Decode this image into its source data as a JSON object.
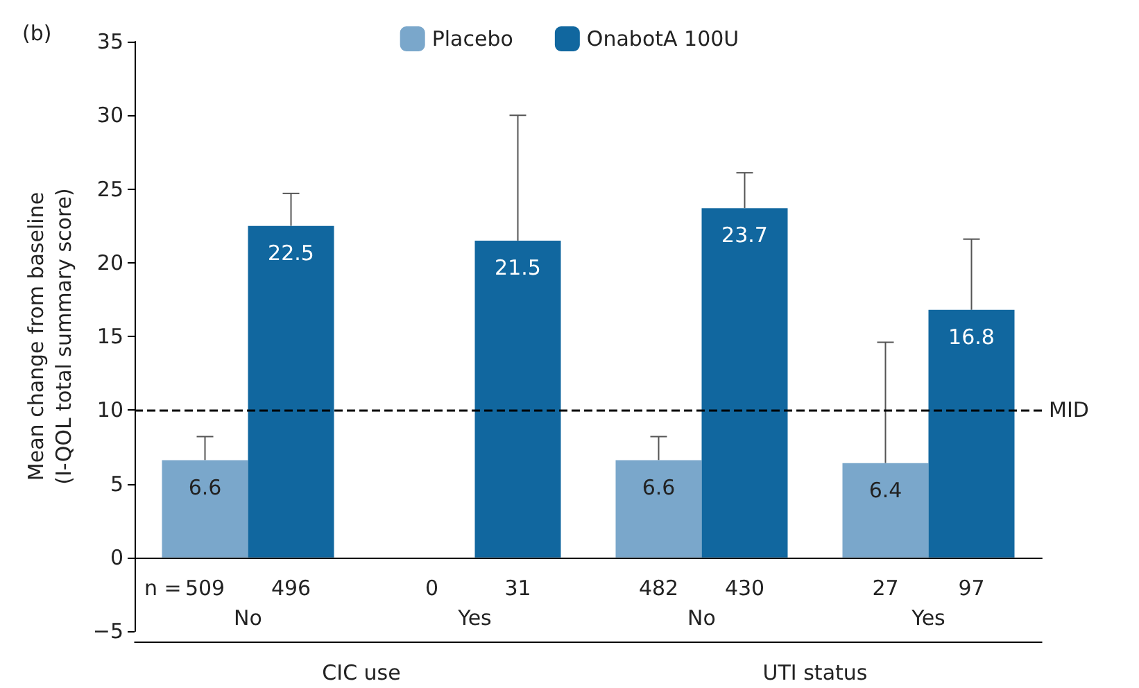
{
  "chart_data": {
    "type": "bar",
    "ylabel": "Mean change from baseline\n(I-QOL total summary score)",
    "categories": [
      "No",
      "Yes",
      "No",
      "Yes"
    ],
    "series": [
      {
        "name": "Placebo",
        "color": "#7aa7cb",
        "values": [
          6.6,
          null,
          6.6,
          6.4
        ],
        "errors": [
          [
            6.6,
            8.2
          ],
          null,
          [
            6.6,
            8.2
          ],
          [
            6.4,
            14.6
          ]
        ]
      },
      {
        "name": "OnabotA 100U",
        "color": "#11679f",
        "values": [
          22.5,
          21.5,
          23.7,
          16.8
        ],
        "errors": [
          [
            22.5,
            24.7
          ],
          [
            21.5,
            30.0
          ],
          [
            23.7,
            26.1
          ],
          [
            16.8,
            21.6
          ]
        ]
      }
    ],
    "ylim": [
      -5,
      35
    ],
    "yticks": [
      {
        "value": -5,
        "label": "−5"
      },
      0,
      5,
      10,
      15,
      20,
      25,
      30,
      35
    ],
    "grid": false,
    "legend": "top",
    "data_labels": true,
    "ref_lines": [
      {
        "axis": "y",
        "value": 10,
        "label": "MID",
        "line_style": "dashed",
        "color": "#000000"
      }
    ],
    "annotations": [
      "(b)",
      "n =",
      "509",
      "496",
      "0",
      "31",
      "482",
      "430",
      "27",
      "97",
      "CIC use",
      "UTI status"
    ]
  }
}
